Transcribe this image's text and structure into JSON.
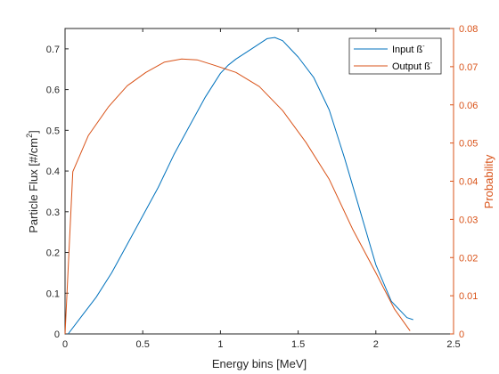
{
  "chart_data": {
    "type": "line",
    "xlabel": "Energy bins [MeV]",
    "ylabel_left": {
      "text": "Particle Flux [#/cm",
      "superscript": "2",
      "suffix": "]"
    },
    "ylabel_right": "Probability",
    "xlim": [
      0,
      2.5
    ],
    "ylim_left": [
      0,
      0.75
    ],
    "ylim_right": [
      0,
      0.08
    ],
    "x_ticks": [
      "0",
      "0.5",
      "1",
      "1.5",
      "2",
      "2.5"
    ],
    "y_left_ticks": [
      "0",
      "0.1",
      "0.2",
      "0.3",
      "0.4",
      "0.5",
      "0.6",
      "0.7"
    ],
    "y_right_ticks": [
      "0",
      "0.01",
      "0.02",
      "0.03",
      "0.04",
      "0.05",
      "0.06",
      "0.07",
      "0.08"
    ],
    "grid": false,
    "legend_position": "top-right",
    "series": [
      {
        "name": "Input ß",
        "name_sup": "-",
        "color": "#0072BD",
        "axis": "left",
        "x": [
          0.02,
          0.1,
          0.2,
          0.3,
          0.4,
          0.5,
          0.6,
          0.7,
          0.8,
          0.9,
          1.0,
          1.05,
          1.1,
          1.2,
          1.3,
          1.35,
          1.4,
          1.45,
          1.5,
          1.6,
          1.7,
          1.8,
          1.9,
          2.0,
          2.1,
          2.2,
          2.24
        ],
        "values": [
          0.0,
          0.04,
          0.09,
          0.15,
          0.22,
          0.29,
          0.36,
          0.44,
          0.51,
          0.58,
          0.64,
          0.66,
          0.675,
          0.7,
          0.725,
          0.728,
          0.72,
          0.7,
          0.68,
          0.63,
          0.55,
          0.43,
          0.3,
          0.17,
          0.08,
          0.04,
          0.035
        ]
      },
      {
        "name": "Output ß",
        "name_sup": "-",
        "color": "#D95319",
        "axis": "right",
        "x": [
          0.0,
          0.05,
          0.15,
          0.28,
          0.4,
          0.52,
          0.64,
          0.75,
          0.85,
          0.95,
          1.1,
          1.25,
          1.4,
          1.55,
          1.7,
          1.85,
          2.0,
          2.12,
          2.22
        ],
        "values": [
          0.0,
          0.0425,
          0.052,
          0.0595,
          0.065,
          0.0685,
          0.0712,
          0.072,
          0.0718,
          0.0705,
          0.0685,
          0.0648,
          0.0585,
          0.0502,
          0.0405,
          0.0275,
          0.016,
          0.0065,
          0.0008
        ]
      }
    ]
  }
}
